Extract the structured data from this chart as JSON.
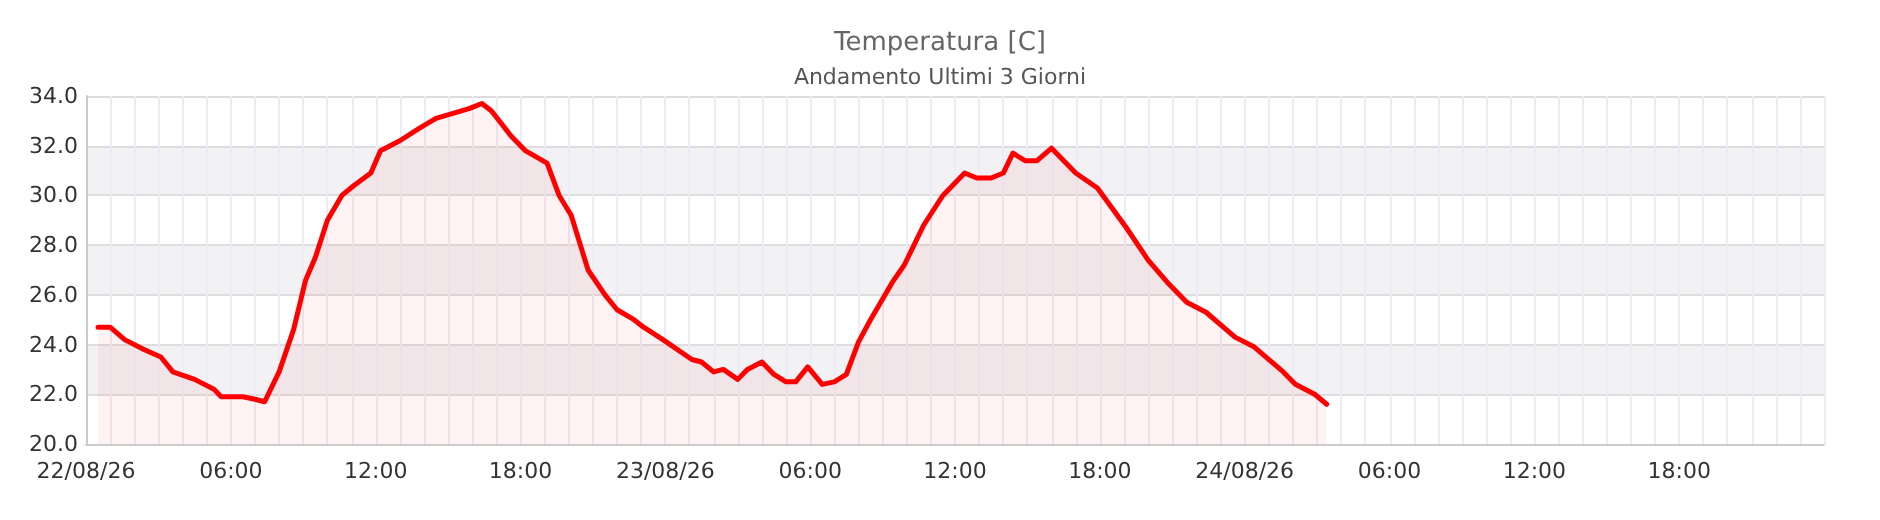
{
  "chart_data": {
    "type": "area",
    "title": "Temperatura [C]",
    "subtitle": "Andamento Ultimi 3 Giorni",
    "x": [
      "--08-22T00:30",
      "--08-22T01:00",
      "--08-22T01:36",
      "--08-22T02:24",
      "--08-22T03:06",
      "--08-22T03:36",
      "--08-22T04:30",
      "--08-22T05:18",
      "--08-22T05:36",
      "--08-22T06:30",
      "--08-22T07:00",
      "--08-22T07:24",
      "--08-22T08:00",
      "--08-22T08:36",
      "--08-22T09:06",
      "--08-22T09:30",
      "--08-22T10:00",
      "--08-22T10:36",
      "--08-22T11:06",
      "--08-22T11:48",
      "--08-22T12:12",
      "--08-22T13:00",
      "--08-22T13:48",
      "--08-22T14:30",
      "--08-22T15:12",
      "--08-22T15:54",
      "--08-22T16:24",
      "--08-22T16:48",
      "--08-22T17:36",
      "--08-22T18:12",
      "--08-22T19:06",
      "--08-22T19:36",
      "--08-22T20:06",
      "--08-22T20:48",
      "--08-22T21:30",
      "--08-22T22:00",
      "--08-22T22:42",
      "--08-22T23:06",
      "--08-22T23:54",
      "--08-23T01:06",
      "--08-23T01:30",
      "--08-23T02:00",
      "--08-23T02:24",
      "--08-23T03:00",
      "--08-23T03:24",
      "--08-23T04:00",
      "--08-23T04:30",
      "--08-23T05:00",
      "--08-23T05:24",
      "--08-23T05:54",
      "--08-23T06:30",
      "--08-23T07:00",
      "--08-23T07:30",
      "--08-23T08:00",
      "--08-23T08:30",
      "--08-23T09:24",
      "--08-23T09:54",
      "--08-23T10:42",
      "--08-23T11:30",
      "--08-23T12:24",
      "--08-23T12:54",
      "--08-23T13:30",
      "--08-23T14:00",
      "--08-23T14:24",
      "--08-23T14:54",
      "--08-23T15:24",
      "--08-23T16:00",
      "--08-23T17:00",
      "--08-23T17:54",
      "--08-23T19:06",
      "--08-23T20:00",
      "--08-23T20:48",
      "--08-23T21:36",
      "--08-23T22:24",
      "--08-23T23:36",
      "--08-24T00:24",
      "--08-24T01:36",
      "--08-24T02:06",
      "--08-24T02:54",
      "--08-24T03:24"
    ],
    "series": [
      {
        "color": "#ff0000",
        "values": [
          24.7,
          24.7,
          24.2,
          23.8,
          23.5,
          22.9,
          22.6,
          22.2,
          21.9,
          21.9,
          21.8,
          21.7,
          22.9,
          24.6,
          26.6,
          27.5,
          29.0,
          30.0,
          30.4,
          30.9,
          31.8,
          32.2,
          32.7,
          33.1,
          33.3,
          33.5,
          33.7,
          33.4,
          32.4,
          31.8,
          31.3,
          30.0,
          29.2,
          27.0,
          26.0,
          25.4,
          25.0,
          24.7,
          24.2,
          23.4,
          23.3,
          22.9,
          23.0,
          22.6,
          23.0,
          23.3,
          22.8,
          22.5,
          22.5,
          23.1,
          22.4,
          22.5,
          22.8,
          24.1,
          25.0,
          26.5,
          27.2,
          28.8,
          30.0,
          30.9,
          30.7,
          30.7,
          30.9,
          31.7,
          31.4,
          31.4,
          31.9,
          30.9,
          30.3,
          28.7,
          27.4,
          26.5,
          25.7,
          25.3,
          24.3,
          23.9,
          22.9,
          22.4,
          22.0,
          21.6
        ]
      }
    ],
    "xlim": [
      "--08-22T00:00",
      "--08-25T00:00"
    ],
    "xticks": [
      {
        "value": "--08-22T00:00",
        "label": "22/08/26"
      },
      {
        "value": "--08-22T06:00",
        "label": "06:00"
      },
      {
        "value": "--08-22T12:00",
        "label": "12:00"
      },
      {
        "value": "--08-22T18:00",
        "label": "18:00"
      },
      {
        "value": "--08-23T00:00",
        "label": "23/08/26"
      },
      {
        "value": "--08-23T06:00",
        "label": "06:00"
      },
      {
        "value": "--08-23T12:00",
        "label": "12:00"
      },
      {
        "value": "--08-23T18:00",
        "label": "18:00"
      },
      {
        "value": "--08-24T00:00",
        "label": "24/08/26"
      },
      {
        "value": "--08-24T06:00",
        "label": "06:00"
      },
      {
        "value": "--08-24T12:00",
        "label": "12:00"
      },
      {
        "value": "--08-24T18:00",
        "label": "18:00"
      }
    ],
    "ylim": [
      20,
      34
    ],
    "yticks": [
      {
        "value": 20,
        "label": "20.0"
      },
      {
        "value": 22,
        "label": "22.0"
      },
      {
        "value": 24,
        "label": "24.0"
      },
      {
        "value": 26,
        "label": "26.0"
      },
      {
        "value": 28,
        "label": "28.0"
      },
      {
        "value": 30,
        "label": "30.0"
      },
      {
        "value": 32,
        "label": "32.0"
      },
      {
        "value": 34,
        "label": "34.0"
      }
    ],
    "grid": true,
    "marker": "none",
    "line_style": "solid"
  }
}
